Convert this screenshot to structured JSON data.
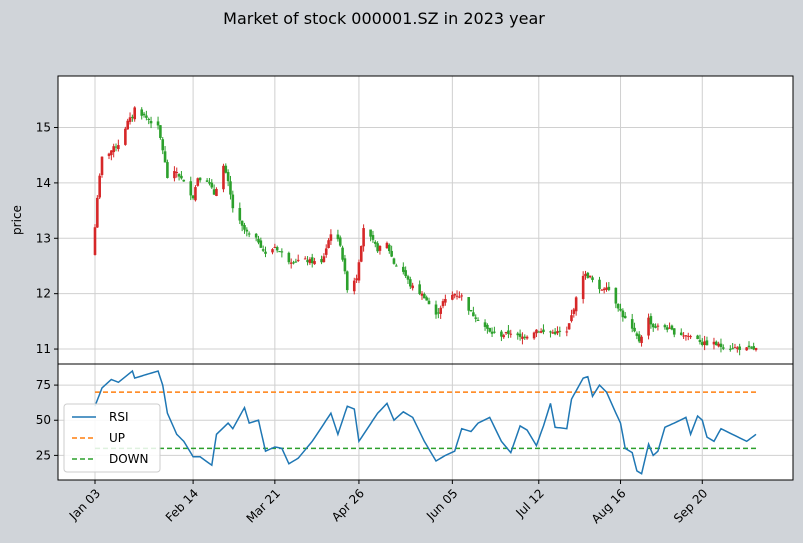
{
  "title": "Market of stock 000001.SZ in 2023 year",
  "colors": {
    "up": "#d62728",
    "down": "#2ca02c",
    "rsi": "#1f77b4",
    "up_line": "#ff7f0e",
    "down_line": "#2ca02c",
    "grid": "#d0d0d0",
    "figure_bg": "#d0d4d9"
  },
  "chart_data": [
    {
      "type": "candlestick",
      "ylabel": "price",
      "ylim": [
        10.73,
        15.93
      ],
      "yticks": [
        11,
        12,
        13,
        14,
        15
      ],
      "grid": true,
      "x_ticks": [
        "Jan 03",
        "Feb 14",
        "Mar 21",
        "Apr 26",
        "Jun 05",
        "Jul 12",
        "Aug 16",
        "Sep 20"
      ],
      "close_anchors": [
        [
          "2023-01-03",
          13.2
        ],
        [
          "2023-01-04",
          13.75
        ],
        [
          "2023-01-06",
          14.45
        ],
        [
          "2023-01-09",
          14.55
        ],
        [
          "2023-01-13",
          14.7
        ],
        [
          "2023-01-17",
          15.1
        ],
        [
          "2023-01-19",
          15.2
        ],
        [
          "2023-01-20",
          15.35
        ],
        [
          "2023-01-30",
          15.0
        ],
        [
          "2023-02-01",
          14.6
        ],
        [
          "2023-02-03",
          14.1
        ],
        [
          "2023-02-07",
          14.2
        ],
        [
          "2023-02-10",
          14.0
        ],
        [
          "2023-02-14",
          13.75
        ],
        [
          "2023-02-16",
          14.1
        ],
        [
          "2023-02-20",
          14.05
        ],
        [
          "2023-02-23",
          13.8
        ],
        [
          "2023-02-27",
          14.3
        ],
        [
          "2023-03-01",
          14.0
        ],
        [
          "2023-03-03",
          13.55
        ],
        [
          "2023-03-07",
          13.2
        ],
        [
          "2023-03-10",
          13.05
        ],
        [
          "2023-03-14",
          12.95
        ],
        [
          "2023-03-17",
          12.7
        ],
        [
          "2023-03-21",
          12.85
        ],
        [
          "2023-03-27",
          12.6
        ],
        [
          "2023-04-03",
          12.6
        ],
        [
          "2023-04-10",
          12.55
        ],
        [
          "2023-04-14",
          13.1
        ],
        [
          "2023-04-18",
          12.9
        ],
        [
          "2023-04-21",
          12.1
        ],
        [
          "2023-04-25",
          12.3
        ],
        [
          "2023-04-26",
          12.6
        ],
        [
          "2023-04-28",
          13.2
        ],
        [
          "2023-05-04",
          12.8
        ],
        [
          "2023-05-08",
          12.9
        ],
        [
          "2023-05-11",
          12.55
        ],
        [
          "2023-05-15",
          12.4
        ],
        [
          "2023-05-18",
          12.15
        ],
        [
          "2023-05-24",
          11.95
        ],
        [
          "2023-05-29",
          11.6
        ],
        [
          "2023-06-01",
          11.85
        ],
        [
          "2023-06-06",
          12.0
        ],
        [
          "2023-06-09",
          11.95
        ],
        [
          "2023-06-13",
          11.65
        ],
        [
          "2023-06-16",
          11.55
        ],
        [
          "2023-06-21",
          11.3
        ],
        [
          "2023-06-26",
          11.25
        ],
        [
          "2023-06-30",
          11.3
        ],
        [
          "2023-07-04",
          11.2
        ],
        [
          "2023-07-07",
          11.25
        ],
        [
          "2023-07-11",
          11.35
        ],
        [
          "2023-07-14",
          11.3
        ],
        [
          "2023-07-19",
          11.3
        ],
        [
          "2023-07-24",
          11.3
        ],
        [
          "2023-07-26",
          11.6
        ],
        [
          "2023-07-31",
          12.35
        ],
        [
          "2023-08-03",
          12.3
        ],
        [
          "2023-08-07",
          12.05
        ],
        [
          "2023-08-10",
          12.15
        ],
        [
          "2023-08-14",
          11.85
        ],
        [
          "2023-08-17",
          11.6
        ],
        [
          "2023-08-21",
          11.35
        ],
        [
          "2023-08-24",
          11.15
        ],
        [
          "2023-08-28",
          11.55
        ],
        [
          "2023-08-30",
          11.4
        ],
        [
          "2023-09-04",
          11.4
        ],
        [
          "2023-09-08",
          11.3
        ],
        [
          "2023-09-13",
          11.25
        ],
        [
          "2023-09-18",
          11.2
        ],
        [
          "2023-09-20",
          11.1
        ],
        [
          "2023-09-25",
          11.1
        ],
        [
          "2023-09-28",
          11.05
        ],
        [
          "2023-10-09",
          11.0
        ],
        [
          "2023-10-13",
          11.0
        ]
      ]
    },
    {
      "type": "line",
      "ylim": [
        7.5,
        90
      ],
      "yticks": [
        25,
        50,
        75
      ],
      "grid": true,
      "legend": "lower-left",
      "x_ticks": [
        "Jan 03",
        "Feb 14",
        "Mar 21",
        "Apr 26",
        "Jun 05",
        "Jul 12",
        "Aug 16",
        "Sep 20"
      ],
      "series": [
        {
          "name": "RSI",
          "anchors": [
            [
              "2023-01-03",
              60
            ],
            [
              "2023-01-06",
              73
            ],
            [
              "2023-01-10",
              79
            ],
            [
              "2023-01-13",
              77
            ],
            [
              "2023-01-19",
              85
            ],
            [
              "2023-01-20",
              80
            ],
            [
              "2023-01-30",
              85
            ],
            [
              "2023-02-01",
              75
            ],
            [
              "2023-02-03",
              55
            ],
            [
              "2023-02-07",
              40
            ],
            [
              "2023-02-10",
              35
            ],
            [
              "2023-02-14",
              24
            ],
            [
              "2023-02-17",
              24
            ],
            [
              "2023-02-22",
              18
            ],
            [
              "2023-02-24",
              40
            ],
            [
              "2023-03-01",
              48
            ],
            [
              "2023-03-03",
              44
            ],
            [
              "2023-03-08",
              59
            ],
            [
              "2023-03-10",
              48
            ],
            [
              "2023-03-14",
              50
            ],
            [
              "2023-03-17",
              28
            ],
            [
              "2023-03-21",
              31
            ],
            [
              "2023-03-24",
              30
            ],
            [
              "2023-03-27",
              19
            ],
            [
              "2023-03-31",
              23
            ],
            [
              "2023-04-06",
              35
            ],
            [
              "2023-04-10",
              45
            ],
            [
              "2023-04-14",
              55
            ],
            [
              "2023-04-17",
              40
            ],
            [
              "2023-04-21",
              60
            ],
            [
              "2023-04-24",
              58
            ],
            [
              "2023-04-26",
              35
            ],
            [
              "2023-04-28",
              40
            ],
            [
              "2023-05-04",
              55
            ],
            [
              "2023-05-08",
              62
            ],
            [
              "2023-05-11",
              50
            ],
            [
              "2023-05-15",
              56
            ],
            [
              "2023-05-19",
              52
            ],
            [
              "2023-05-24",
              35
            ],
            [
              "2023-05-29",
              21
            ],
            [
              "2023-06-02",
              25
            ],
            [
              "2023-06-06",
              28
            ],
            [
              "2023-06-09",
              44
            ],
            [
              "2023-06-13",
              42
            ],
            [
              "2023-06-16",
              48
            ],
            [
              "2023-06-21",
              52
            ],
            [
              "2023-06-26",
              35
            ],
            [
              "2023-06-30",
              27
            ],
            [
              "2023-07-04",
              46
            ],
            [
              "2023-07-07",
              43
            ],
            [
              "2023-07-11",
              32
            ],
            [
              "2023-07-14",
              46
            ],
            [
              "2023-07-17",
              62
            ],
            [
              "2023-07-19",
              45
            ],
            [
              "2023-07-24",
              44
            ],
            [
              "2023-07-26",
              65
            ],
            [
              "2023-07-31",
              80
            ],
            [
              "2023-08-02",
              81
            ],
            [
              "2023-08-04",
              67
            ],
            [
              "2023-08-07",
              75
            ],
            [
              "2023-08-10",
              70
            ],
            [
              "2023-08-14",
              55
            ],
            [
              "2023-08-16",
              48
            ],
            [
              "2023-08-18",
              30
            ],
            [
              "2023-08-21",
              27
            ],
            [
              "2023-08-23",
              14
            ],
            [
              "2023-08-25",
              12
            ],
            [
              "2023-08-28",
              33
            ],
            [
              "2023-08-30",
              25
            ],
            [
              "2023-09-01",
              28
            ],
            [
              "2023-09-04",
              45
            ],
            [
              "2023-09-08",
              48
            ],
            [
              "2023-09-13",
              52
            ],
            [
              "2023-09-15",
              40
            ],
            [
              "2023-09-18",
              53
            ],
            [
              "2023-09-20",
              50
            ],
            [
              "2023-09-22",
              38
            ],
            [
              "2023-09-25",
              35
            ],
            [
              "2023-09-28",
              44
            ],
            [
              "2023-10-09",
              35
            ],
            [
              "2023-10-13",
              40
            ]
          ]
        },
        {
          "name": "UP",
          "constant": 70
        },
        {
          "name": "DOWN",
          "constant": 30
        }
      ]
    }
  ]
}
